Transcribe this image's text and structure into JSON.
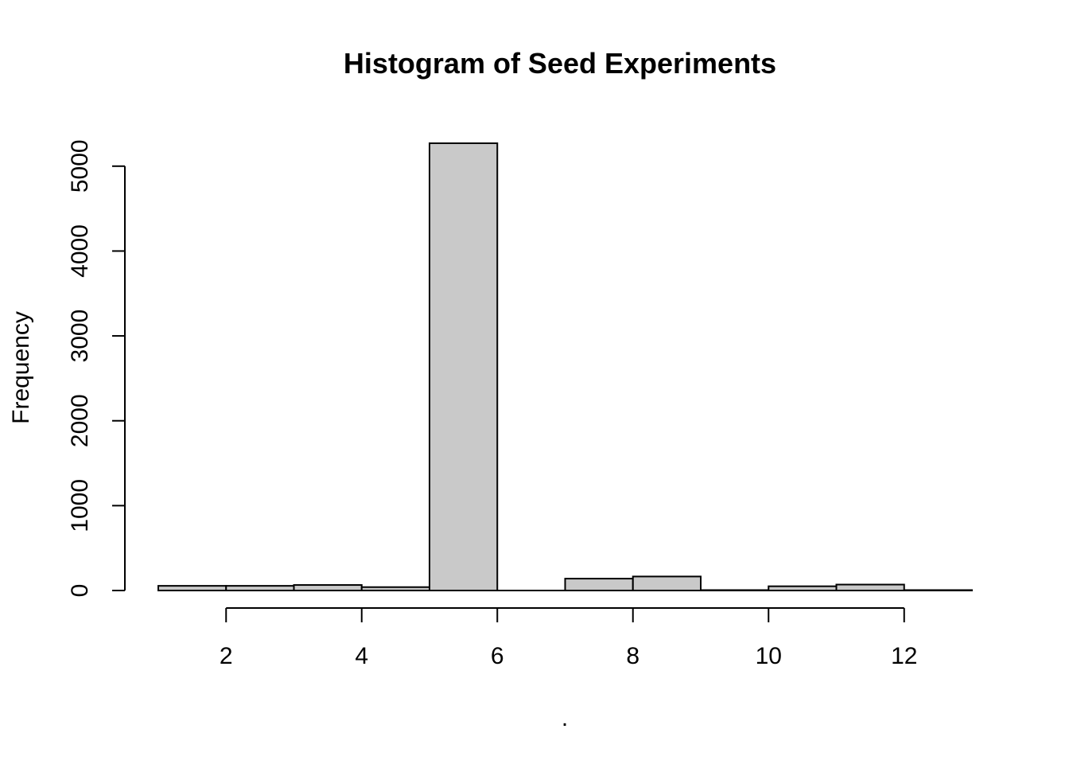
{
  "chart_data": {
    "type": "bar",
    "title": "Histogram of Seed Experiments",
    "xlabel": ".",
    "ylabel": "Frequency",
    "bin_edges": [
      1,
      2,
      3,
      4,
      5,
      6,
      7,
      8,
      9,
      10,
      11,
      12,
      13
    ],
    "values": [
      55,
      55,
      65,
      40,
      5270,
      0,
      140,
      165,
      5,
      50,
      70,
      5
    ],
    "xlim": [
      1,
      13
    ],
    "ylim": [
      0,
      5270
    ],
    "x_ticks": [
      2,
      4,
      6,
      8,
      10,
      12
    ],
    "y_ticks": [
      0,
      1000,
      2000,
      3000,
      4000,
      5000
    ],
    "grid": false,
    "colors": {
      "bar_fill": "#c9c9c9",
      "bar_stroke": "#000000"
    }
  }
}
